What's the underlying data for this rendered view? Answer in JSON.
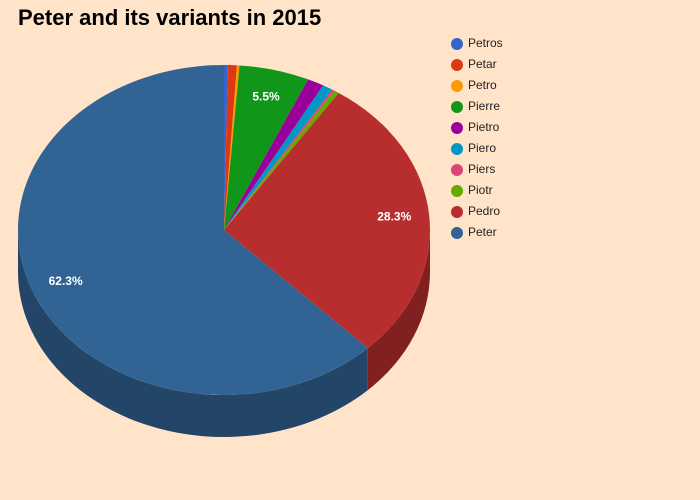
{
  "chart_data": {
    "type": "pie",
    "title": "Peter and its variants in 2015",
    "categories": [
      "Petros",
      "Petar",
      "Petro",
      "Pierre",
      "Pietro",
      "Piero",
      "Piers",
      "Piotr",
      "Pedro",
      "Peter"
    ],
    "values": [
      0.3,
      0.7,
      0.2,
      5.5,
      1.3,
      0.8,
      0.2,
      0.4,
      28.3,
      62.3
    ],
    "value_labels": [
      null,
      null,
      null,
      "5.5%",
      null,
      null,
      null,
      null,
      "28.3%",
      "62.3%"
    ],
    "colors": [
      "#3366cc",
      "#dc3912",
      "#ff9900",
      "#109618",
      "#990099",
      "#0099c6",
      "#dd4477",
      "#66aa00",
      "#b82e2e",
      "#316395"
    ],
    "is_3d": true,
    "legend": "right"
  }
}
